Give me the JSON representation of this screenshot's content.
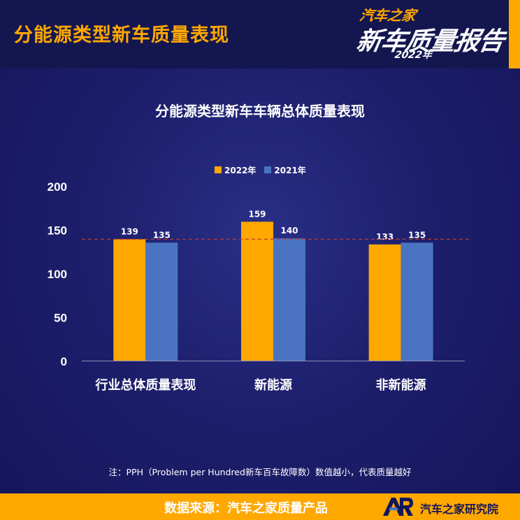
{
  "header": {
    "title": "分能源类型新车质量表现",
    "logo": {
      "line1": "汽车之家",
      "line2": "新车质量报告",
      "line3": "2022年"
    }
  },
  "colors": {
    "accent": "#ffa800",
    "series_2022": "#ffa800",
    "series_2021": "#4a74c2",
    "reference_line": "#c0392b"
  },
  "chart_data": {
    "type": "bar",
    "title": "分能源类型新车车辆总体质量表现",
    "categories": [
      "行业总体质量表现",
      "新能源",
      "非新能源"
    ],
    "series": [
      {
        "name": "2022年",
        "values": [
          139,
          159,
          133
        ]
      },
      {
        "name": "2021年",
        "values": [
          135,
          140,
          135
        ]
      }
    ],
    "yticks": [
      "0",
      "50",
      "100",
      "150",
      "200"
    ],
    "ylim": [
      0,
      200
    ],
    "reference_line": {
      "value": 139,
      "style": "dashed"
    },
    "legend_position": "top-center",
    "grid": false
  },
  "note": "注：PPH（Problem per Hundred新车百车故障数）数值越小，代表质量越好",
  "footer": {
    "source": "数据来源：汽车之家质量产品",
    "org": "汽车之家研究院",
    "org_logo": "AR"
  }
}
